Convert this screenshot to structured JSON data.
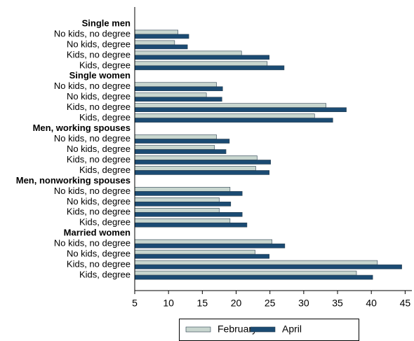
{
  "chart_data": {
    "type": "grouped-hbar",
    "groups": [
      {
        "label": "Single men",
        "categories": [
          "No kids, no degree",
          "No kids, degree",
          "Kids, no degree",
          "Kids, degree"
        ]
      },
      {
        "label": "Single women",
        "categories": [
          "No kids, no degree",
          "No kids, degree",
          "Kids, no degree",
          "Kids, degree"
        ]
      },
      {
        "label": "Men, working spouses",
        "categories": [
          "No kids, no degree",
          "No kids, degree",
          "Kids, no degree",
          "Kids, degree"
        ]
      },
      {
        "label": "Men, nonworking spouses",
        "categories": [
          "No kids, no degree",
          "No kids, degree",
          "Kids, no degree",
          "Kids, degree"
        ]
      },
      {
        "label": "Married women",
        "categories": [
          "No kids, no degree",
          "No kids, degree",
          "Kids, no degree",
          "Kids, degree"
        ]
      }
    ],
    "series": [
      {
        "name": "February",
        "color": "#c8d6cf",
        "values": [
          11.4,
          10.9,
          20.8,
          24.6,
          17.1,
          15.6,
          33.3,
          31.6,
          17.1,
          16.8,
          23.1,
          22.9,
          19.1,
          17.5,
          17.5,
          19.1,
          25.3,
          22.8,
          40.9,
          37.8
        ]
      },
      {
        "name": "April",
        "color": "#1b4b73",
        "values": [
          13.0,
          12.8,
          24.9,
          27.1,
          18.0,
          17.9,
          36.3,
          34.3,
          19.0,
          18.5,
          25.1,
          24.9,
          20.9,
          19.2,
          20.9,
          21.6,
          27.2,
          24.9,
          44.5,
          40.2
        ]
      }
    ],
    "xlim": [
      5,
      46
    ],
    "xticks": [
      5,
      10,
      15,
      20,
      25,
      30,
      35,
      40,
      45
    ],
    "legend": "bottom"
  }
}
